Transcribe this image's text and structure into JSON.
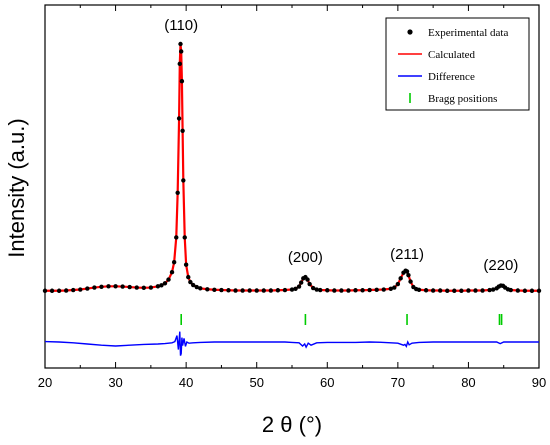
{
  "chart_data": {
    "type": "line",
    "xlabel": "2 θ (°)",
    "ylabel": "Intensity (a.u.)",
    "xlim": [
      20,
      90
    ],
    "xticks": [
      20,
      30,
      40,
      50,
      60,
      70,
      80,
      90
    ],
    "y_tick_labels": "none",
    "peaks": [
      {
        "label": "(110)",
        "two_theta": 39.3
      },
      {
        "label": "(200)",
        "two_theta": 56.9
      },
      {
        "label": "(211)",
        "two_theta": 71.3
      },
      {
        "label": "(220)",
        "two_theta": 84.6
      }
    ],
    "series": [
      {
        "name": "Experimental data",
        "style": "markers",
        "color": "#000000",
        "x": [
          20,
          21,
          22,
          23,
          24,
          25,
          26,
          27,
          28,
          29,
          30,
          31,
          32,
          33,
          34,
          35,
          36,
          36.5,
          37,
          37.5,
          38,
          38.3,
          38.6,
          38.8,
          39,
          39.1,
          39.2,
          39.3,
          39.4,
          39.5,
          39.6,
          39.8,
          40,
          40.3,
          40.6,
          41,
          41.5,
          42,
          43,
          44,
          45,
          46,
          47,
          48,
          49,
          50,
          51,
          52,
          53,
          54,
          55,
          55.5,
          56,
          56.3,
          56.6,
          56.9,
          57.2,
          57.5,
          58,
          58.5,
          59,
          60,
          61,
          62,
          63,
          64,
          65,
          66,
          67,
          68,
          69,
          69.5,
          70,
          70.4,
          70.8,
          71.1,
          71.3,
          71.5,
          71.8,
          72.2,
          72.6,
          73,
          74,
          75,
          76,
          77,
          78,
          79,
          80,
          81,
          82,
          83,
          83.5,
          84,
          84.3,
          84.6,
          84.9,
          85.2,
          85.6,
          86,
          87,
          88,
          89,
          90
        ],
        "y": [
          0.5,
          0.5,
          0.5,
          0.6,
          0.8,
          1.0,
          1.4,
          1.8,
          2.1,
          2.3,
          2.3,
          2.2,
          2.0,
          1.8,
          1.7,
          1.8,
          2.3,
          2.7,
          3.5,
          5,
          8,
          12,
          22,
          40,
          70,
          92,
          100,
          97,
          85,
          65,
          45,
          22,
          11,
          6,
          4,
          2.8,
          2.0,
          1.5,
          1.1,
          0.9,
          0.8,
          0.7,
          0.6,
          0.6,
          0.6,
          0.6,
          0.6,
          0.6,
          0.7,
          0.8,
          1.0,
          1.3,
          2.2,
          3.8,
          5.5,
          6.0,
          5.0,
          3.2,
          1.6,
          1.0,
          0.8,
          0.7,
          0.6,
          0.6,
          0.6,
          0.7,
          0.7,
          0.8,
          0.9,
          1.0,
          1.3,
          1.8,
          3.2,
          5.5,
          7.8,
          8.6,
          8.3,
          6.8,
          4.2,
          2.0,
          1.2,
          0.9,
          0.7,
          0.6,
          0.6,
          0.5,
          0.5,
          0.5,
          0.6,
          0.6,
          0.6,
          0.8,
          1.0,
          1.5,
          2.2,
          2.6,
          2.5,
          1.8,
          1.1,
          0.8,
          0.6,
          0.5,
          0.5,
          0.5
        ]
      },
      {
        "name": "Calculated",
        "style": "line",
        "color": "#ff0000",
        "x": [
          20,
          21,
          22,
          23,
          24,
          25,
          26,
          27,
          28,
          29,
          30,
          31,
          32,
          33,
          34,
          35,
          36,
          36.5,
          37,
          37.5,
          38,
          38.3,
          38.6,
          38.8,
          39,
          39.1,
          39.2,
          39.3,
          39.4,
          39.5,
          39.6,
          39.8,
          40,
          40.3,
          40.6,
          41,
          41.5,
          42,
          43,
          44,
          45,
          46,
          47,
          48,
          49,
          50,
          51,
          52,
          53,
          54,
          55,
          55.5,
          56,
          56.3,
          56.6,
          56.9,
          57.2,
          57.5,
          58,
          58.5,
          59,
          60,
          61,
          62,
          63,
          64,
          65,
          66,
          67,
          68,
          69,
          69.5,
          70,
          70.4,
          70.8,
          71.1,
          71.3,
          71.5,
          71.8,
          72.2,
          72.6,
          73,
          74,
          75,
          76,
          77,
          78,
          79,
          80,
          81,
          82,
          83,
          83.5,
          84,
          84.3,
          84.6,
          84.9,
          85.2,
          85.6,
          86,
          87,
          88,
          89,
          90
        ],
        "y": [
          0.5,
          0.5,
          0.5,
          0.6,
          0.8,
          1.0,
          1.4,
          1.8,
          2.1,
          2.3,
          2.3,
          2.2,
          2.0,
          1.8,
          1.7,
          1.8,
          2.3,
          2.7,
          3.5,
          5,
          8,
          12,
          22,
          40,
          70,
          92,
          100,
          97,
          85,
          65,
          45,
          22,
          11,
          6,
          4,
          2.8,
          2.0,
          1.5,
          1.1,
          0.9,
          0.8,
          0.7,
          0.6,
          0.6,
          0.6,
          0.6,
          0.6,
          0.6,
          0.7,
          0.8,
          1.0,
          1.3,
          2.2,
          3.8,
          5.5,
          6.0,
          5.0,
          3.2,
          1.6,
          1.0,
          0.8,
          0.7,
          0.6,
          0.6,
          0.6,
          0.7,
          0.7,
          0.8,
          0.9,
          1.0,
          1.3,
          1.8,
          3.2,
          5.5,
          7.8,
          8.6,
          8.3,
          6.8,
          4.2,
          2.0,
          1.2,
          0.9,
          0.7,
          0.6,
          0.6,
          0.5,
          0.5,
          0.5,
          0.6,
          0.6,
          0.6,
          0.8,
          1.0,
          1.5,
          2.2,
          2.6,
          2.5,
          1.8,
          1.1,
          0.8,
          0.6,
          0.5,
          0.5,
          0.5
        ]
      },
      {
        "name": "Difference",
        "style": "line",
        "color": "#0000ff",
        "x": [
          20,
          22,
          24,
          26,
          28,
          30,
          32,
          34,
          36,
          37,
          38,
          38.4,
          38.7,
          38.9,
          39.1,
          39.2,
          39.3,
          39.4,
          39.5,
          39.7,
          39.9,
          40.1,
          40.4,
          41,
          42,
          44,
          46,
          48,
          50,
          52,
          54,
          55,
          56,
          56.5,
          56.8,
          57,
          57.3,
          57.7,
          58.5,
          60,
          62,
          64,
          66,
          68,
          70,
          70.8,
          71,
          71.2,
          71.4,
          71.6,
          72,
          73,
          75,
          78,
          80,
          82,
          84,
          84.5,
          85,
          86,
          88,
          90
        ],
        "y": [
          -17.0,
          -16.9,
          -16.7,
          -16.4,
          -16.1,
          -15.9,
          -16.1,
          -16.3,
          -16.4,
          -16.5,
          -16.7,
          -17.0,
          -18.5,
          -15.0,
          -19.5,
          -13.5,
          -14.0,
          -18.0,
          -16.0,
          -17.8,
          -15.8,
          -16.9,
          -16.6,
          -16.7,
          -16.8,
          -16.9,
          -16.9,
          -16.9,
          -16.9,
          -16.9,
          -16.9,
          -16.8,
          -16.7,
          -15.9,
          -16.4,
          -15.6,
          -16.6,
          -16.1,
          -16.7,
          -16.8,
          -16.8,
          -16.8,
          -16.9,
          -16.8,
          -16.6,
          -16.1,
          -16.3,
          -15.8,
          -16.9,
          -16.2,
          -16.6,
          -16.8,
          -16.9,
          -16.9,
          -16.9,
          -16.9,
          -16.9,
          -16.5,
          -16.9,
          -16.9,
          -16.9,
          -16.9
        ]
      },
      {
        "name": "Bragg positions",
        "style": "ticks",
        "color": "#00cc00",
        "x": [
          39.3,
          56.9,
          71.3,
          84.4,
          84.7
        ]
      }
    ],
    "legend": {
      "position": "top-right",
      "entries": [
        {
          "label": "Experimental data",
          "symbol": "dot",
          "color": "#000000"
        },
        {
          "label": "Calculated",
          "symbol": "line",
          "color": "#ff0000"
        },
        {
          "label": "Difference",
          "symbol": "line",
          "color": "#0000ff"
        },
        {
          "label": "Bragg positions",
          "symbol": "tick",
          "color": "#00cc00"
        }
      ]
    }
  }
}
